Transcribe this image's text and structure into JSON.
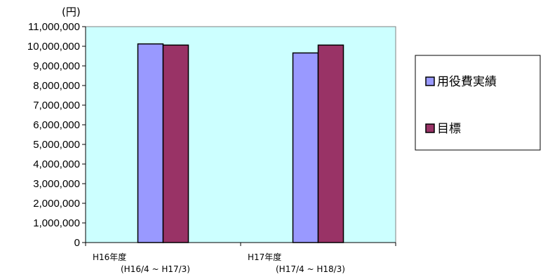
{
  "chart_data": {
    "type": "bar",
    "unit_label": "(円)",
    "categories": [
      {
        "label": "H16年度",
        "sublabel": "(H16/4 ~ H17/3)"
      },
      {
        "label": "H17年度",
        "sublabel": "(H17/4 ~ H18/3)"
      }
    ],
    "series": [
      {
        "name": "用役費実績",
        "color": "#9999ff",
        "values": [
          10120000,
          9660000
        ]
      },
      {
        "name": "目標",
        "color": "#993366",
        "values": [
          10060000,
          10060000
        ]
      }
    ],
    "ylim": [
      0,
      11000000
    ],
    "ytick_step": 1000000,
    "ytick_labels": [
      "0",
      "1,000,000",
      "2,000,000",
      "3,000,000",
      "4,000,000",
      "5,000,000",
      "6,000,000",
      "7,000,000",
      "8,000,000",
      "9,000,000",
      "10,000,000",
      "11,000,000"
    ],
    "plot_background": "#ccffff",
    "grid": false,
    "legend_position": "right",
    "title": "",
    "xlabel": "",
    "ylabel": ""
  }
}
